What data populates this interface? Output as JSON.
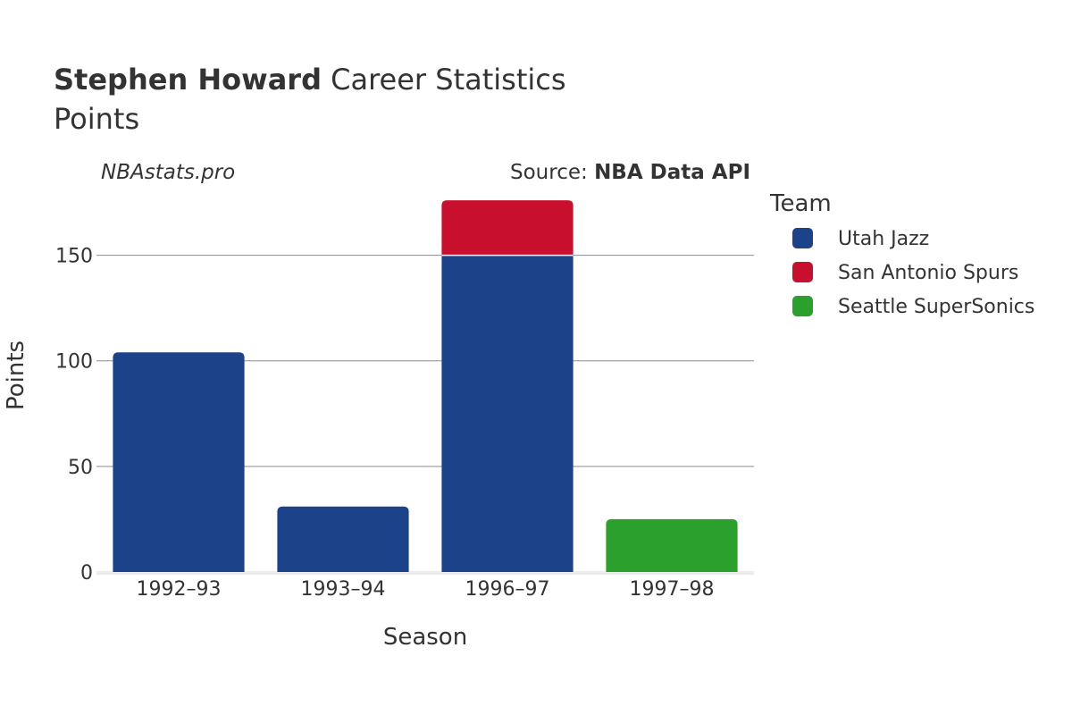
{
  "header": {
    "title_bold": "Stephen Howard",
    "title_rest": " Career Statistics",
    "subtitle": "Points",
    "watermark": "NBAstats.pro",
    "source_prefix": "Source: ",
    "source_bold": "NBA Data API"
  },
  "chart_data": {
    "type": "bar",
    "stacked": true,
    "xlabel": "Season",
    "ylabel": "Points",
    "categories": [
      "1992–93",
      "1993–94",
      "1996–97",
      "1997–98"
    ],
    "series": [
      {
        "name": "Utah Jazz",
        "color": "#1c4389",
        "values": [
          104,
          31,
          150,
          0
        ]
      },
      {
        "name": "San Antonio Spurs",
        "color": "#c8102e",
        "values": [
          0,
          0,
          26,
          0
        ]
      },
      {
        "name": "Seattle SuperSonics",
        "color": "#2ca02c",
        "values": [
          0,
          0,
          0,
          25
        ]
      }
    ],
    "ylim": [
      0,
      182
    ],
    "yticks": [
      0,
      50,
      100,
      150
    ],
    "grid": true,
    "legend": {
      "title": "Team",
      "placement": "right"
    }
  }
}
